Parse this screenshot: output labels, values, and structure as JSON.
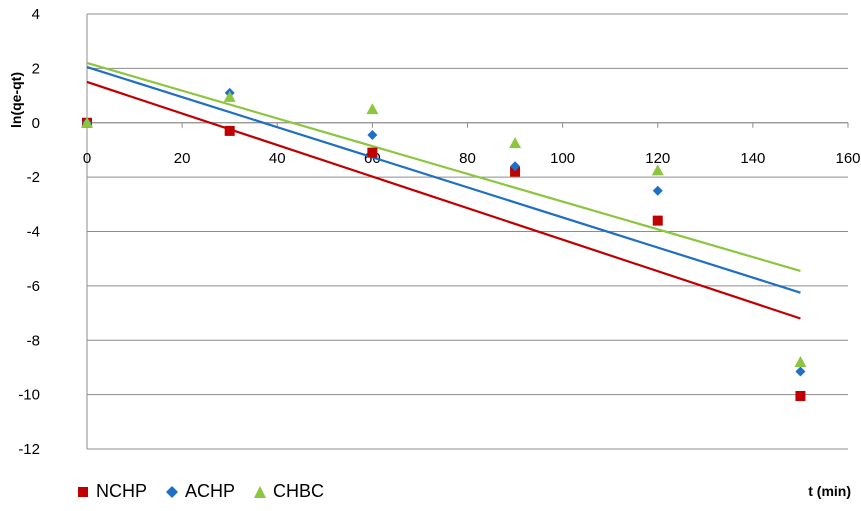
{
  "chart_data": {
    "type": "scatter",
    "title": "",
    "xlabel": "t (min)",
    "ylabel": "ln(qe-qt)",
    "xlim": [
      0,
      160
    ],
    "ylim": [
      -12,
      4
    ],
    "x_ticks": [
      0,
      20,
      40,
      60,
      80,
      100,
      120,
      140,
      160
    ],
    "y_ticks": [
      4,
      2,
      0,
      -2,
      -4,
      -6,
      -8,
      -10,
      -12
    ],
    "grid": "horizontal",
    "legend_position": "bottom-left",
    "series": [
      {
        "name": "NCHP",
        "marker": "square",
        "color": "#c00000",
        "points": [
          [
            0,
            0.0
          ],
          [
            30,
            -0.3
          ],
          [
            60,
            -1.1
          ],
          [
            90,
            -1.8
          ],
          [
            120,
            -3.6
          ],
          [
            150,
            -10.05
          ]
        ],
        "trendline": [
          [
            0,
            1.5
          ],
          [
            150,
            -7.2
          ]
        ]
      },
      {
        "name": "ACHP",
        "marker": "diamond",
        "color": "#1f6fc5",
        "points": [
          [
            0,
            0.0
          ],
          [
            30,
            1.1
          ],
          [
            60,
            -0.45
          ],
          [
            90,
            -1.6
          ],
          [
            120,
            -2.5
          ],
          [
            150,
            -9.15
          ]
        ],
        "trendline": [
          [
            0,
            2.05
          ],
          [
            150,
            -6.25
          ]
        ]
      },
      {
        "name": "CHBC",
        "marker": "triangle",
        "color": "#8cc63f",
        "points": [
          [
            0,
            0.0
          ],
          [
            30,
            0.95
          ],
          [
            60,
            0.5
          ],
          [
            90,
            -0.75
          ],
          [
            120,
            -1.75
          ],
          [
            150,
            -8.8
          ]
        ],
        "trendline": [
          [
            0,
            2.2
          ],
          [
            150,
            -5.45
          ]
        ]
      }
    ]
  }
}
